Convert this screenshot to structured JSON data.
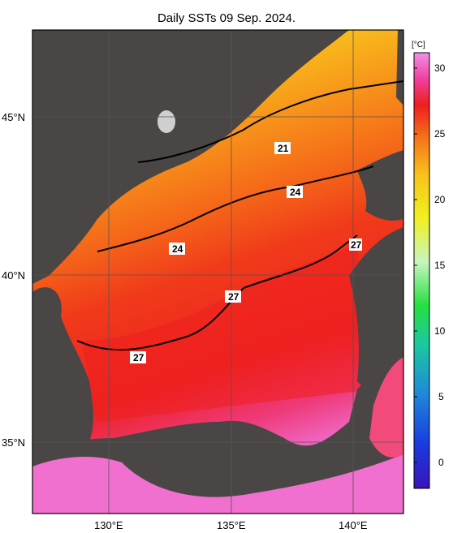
{
  "title": "Daily SSTs 09 Sep. 2024.",
  "lat_labels": [
    {
      "text": "45°N",
      "lat": 45
    },
    {
      "text": "40°N",
      "lat": 40
    },
    {
      "text": "35°N",
      "lat": 35
    }
  ],
  "lon_labels": [
    {
      "text": "130°E",
      "lon": 130
    },
    {
      "text": "135°E",
      "lon": 135
    },
    {
      "text": "140°E",
      "lon": 140
    }
  ],
  "colorbar": {
    "unit": "[°C]",
    "ticks": [
      "30",
      "25",
      "20",
      "15",
      "10",
      "5",
      "0"
    ],
    "min": -2,
    "max": 31
  },
  "contour_labels": [
    {
      "text": "21"
    },
    {
      "text": "24"
    },
    {
      "text": "24"
    },
    {
      "text": "27"
    },
    {
      "text": "27"
    },
    {
      "text": "27"
    }
  ],
  "colors": {
    "land": "#4a4646",
    "sea_warm": "#f01a18",
    "sea_orange": "#f77a12",
    "sea_yellow": "#f8c61a",
    "sea_pink": "#f06fc8"
  }
}
